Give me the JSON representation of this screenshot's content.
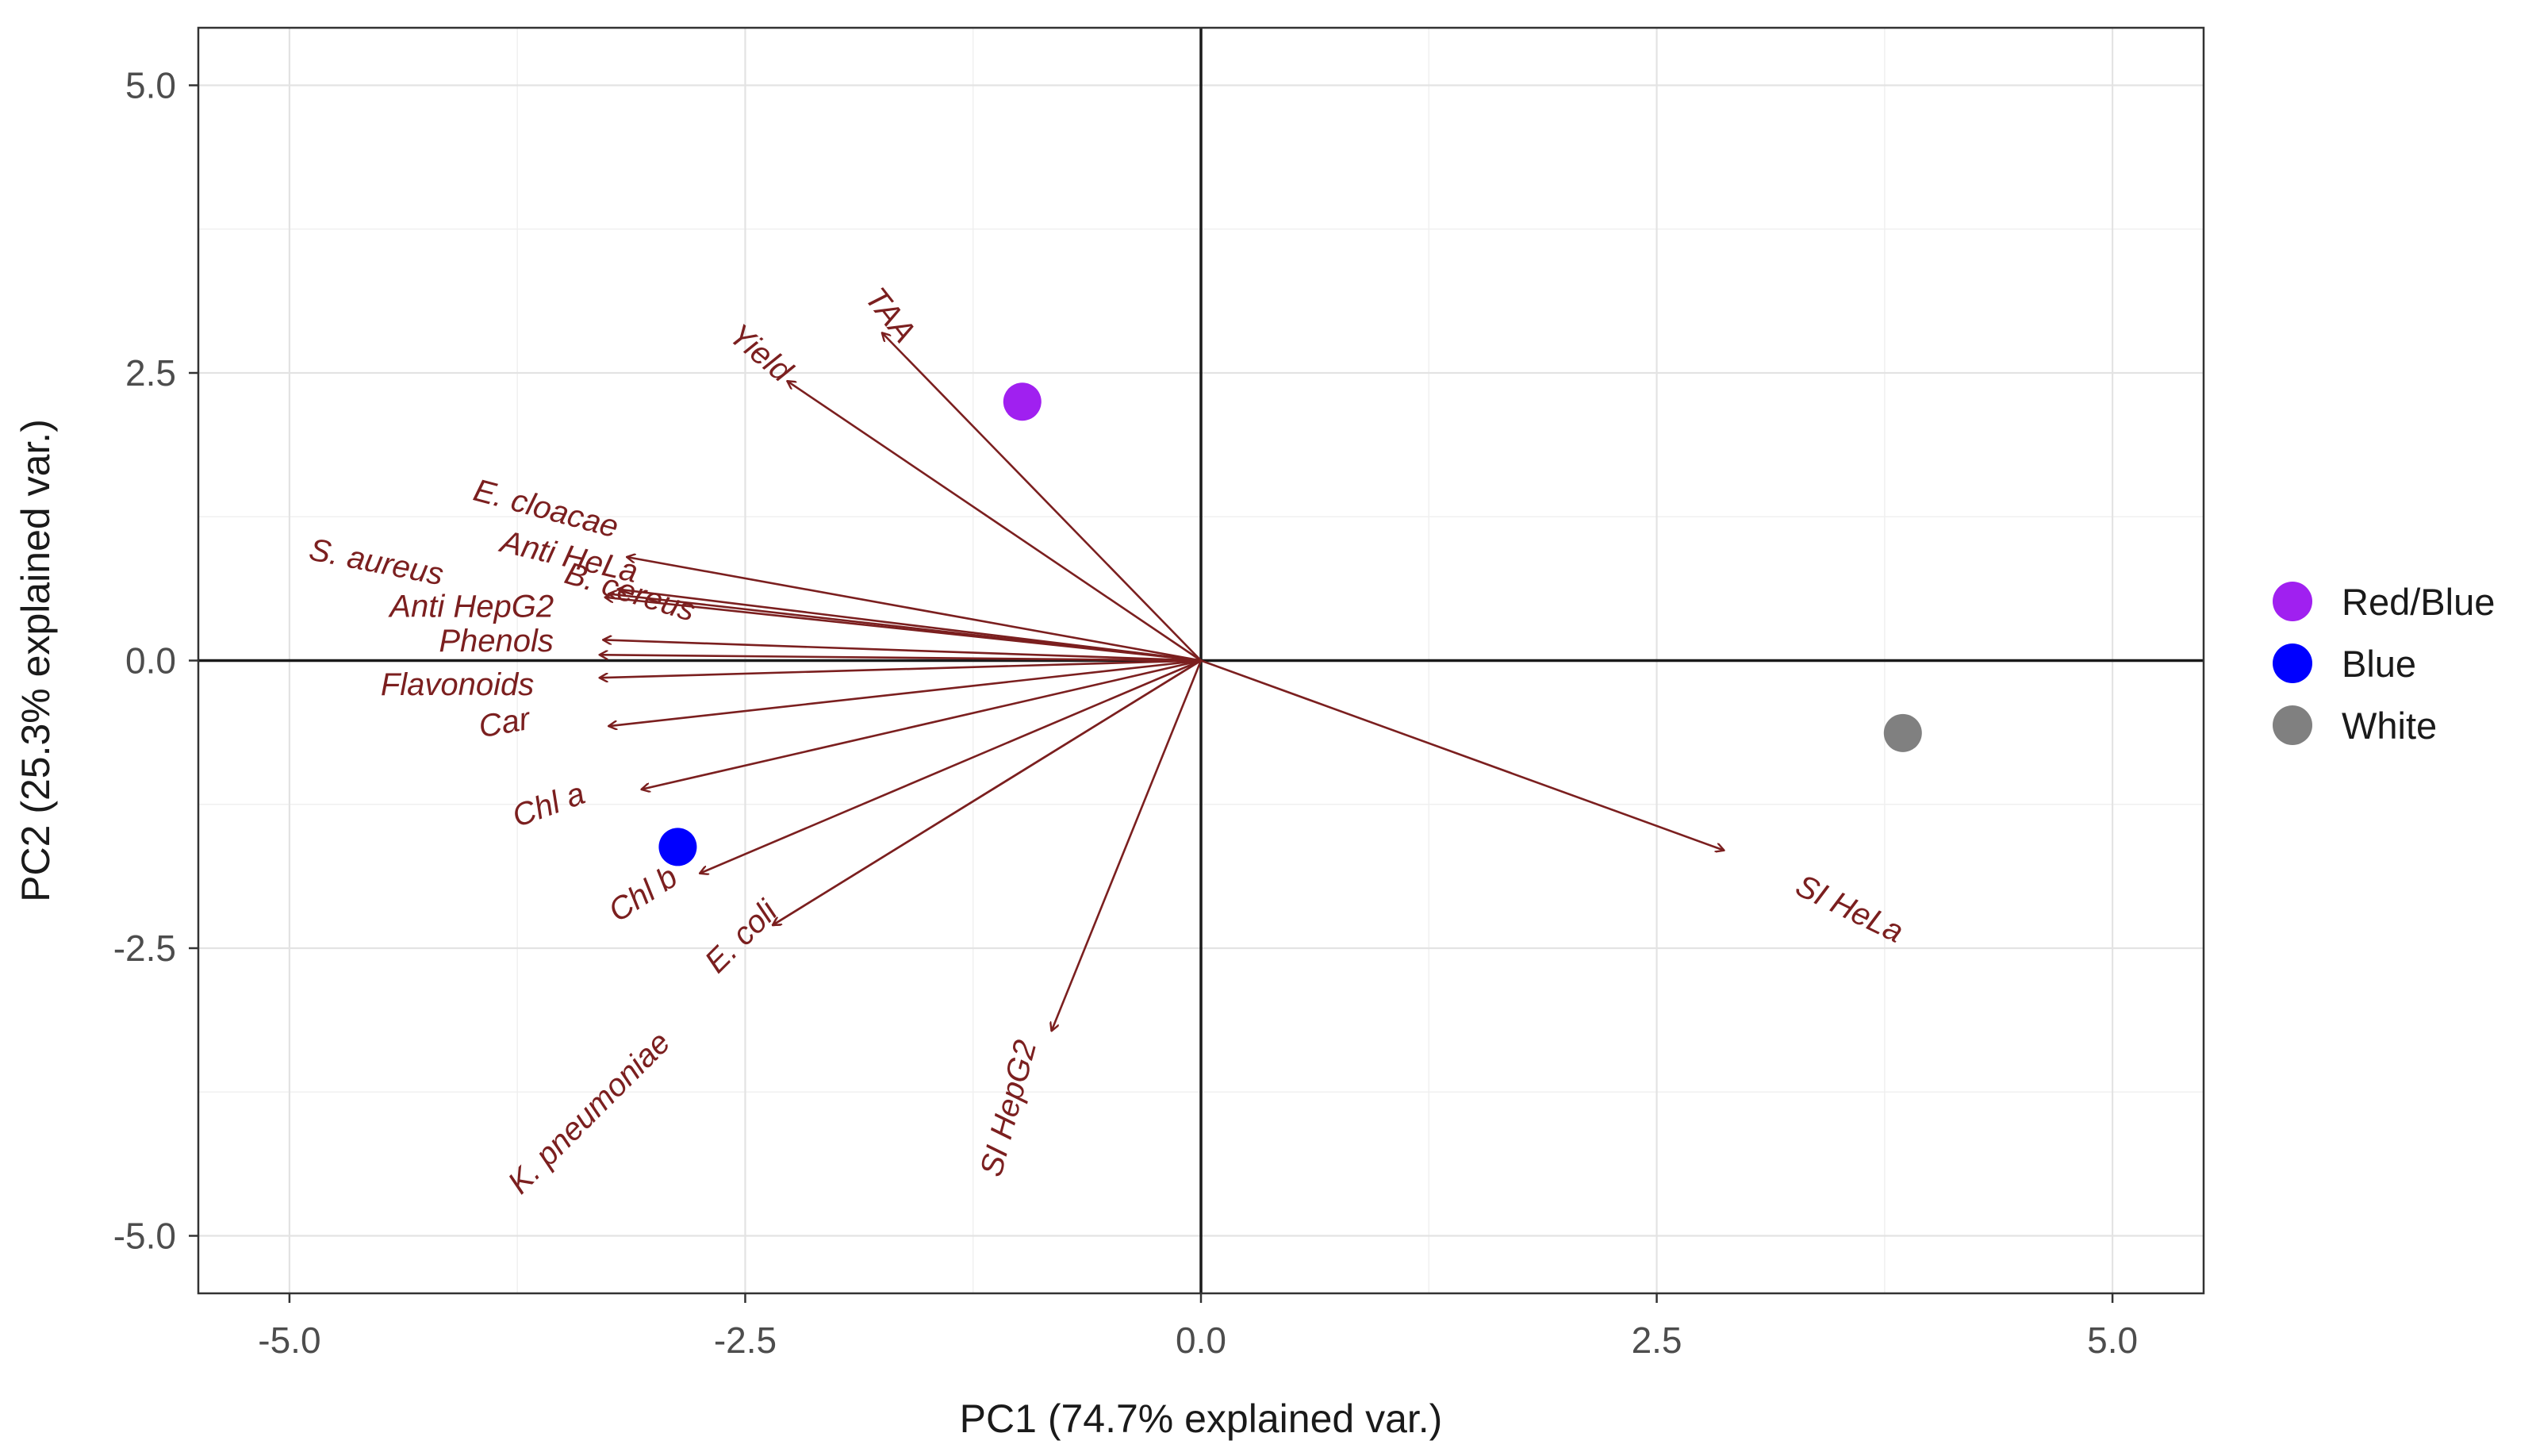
{
  "chart_data": {
    "type": "scatter",
    "subtype": "pca-biplot",
    "xlabel": "PC1 (74.7% explained var.)",
    "ylabel": "PC2 (25.3% explained var.)",
    "xlim": [
      -5.5,
      5.5
    ],
    "ylim": [
      -5.5,
      5.5
    ],
    "xticks": [
      -5.0,
      -2.5,
      0.0,
      2.5,
      5.0
    ],
    "yticks": [
      -5.0,
      -2.5,
      0.0,
      2.5,
      5.0
    ],
    "xtick_labels": [
      "-5.0",
      "-2.5",
      "0.0",
      "2.5",
      "5.0"
    ],
    "ytick_labels": [
      "-5.0",
      "-2.5",
      "0.0",
      "2.5",
      "5.0"
    ],
    "grid": true,
    "legend_position": "right",
    "arrow_color": "#7b1f1f",
    "points": [
      {
        "name": "Red/Blue",
        "x": -0.98,
        "y": 2.25,
        "color": "#a020f0"
      },
      {
        "name": "Blue",
        "x": -2.87,
        "y": -1.62,
        "color": "#0000ff"
      },
      {
        "name": "White",
        "x": 3.85,
        "y": -0.63,
        "color": "#808080"
      }
    ],
    "loadings": [
      {
        "name": "TAA",
        "x": -1.75,
        "y": 2.85,
        "lx": -1.85,
        "ly": 3.15,
        "angle": 52
      },
      {
        "name": "Yield",
        "x": -2.27,
        "y": 2.43,
        "lx": -2.6,
        "ly": 2.8,
        "angle": 40
      },
      {
        "name": "E. cloacae",
        "x": -3.15,
        "y": 0.9,
        "lx": -4.0,
        "ly": 1.4,
        "angle": 15
      },
      {
        "name": "Anti HeLa",
        "x": -3.2,
        "y": 0.62,
        "lx": -3.85,
        "ly": 0.95,
        "angle": 13
      },
      {
        "name": "B. cereus",
        "x": -3.25,
        "y": 0.58,
        "lx": -3.5,
        "ly": 0.68,
        "angle": 17
      },
      {
        "name": "S. aureus",
        "x": -3.27,
        "y": 0.55,
        "lx": -4.9,
        "ly": 0.88,
        "angle": 11
      },
      {
        "name": "Anti HepG2",
        "x": -3.28,
        "y": 0.18,
        "lx": -4.45,
        "ly": 0.38,
        "angle": 0
      },
      {
        "name": "Phenols",
        "x": -3.3,
        "y": 0.05,
        "lx": -4.18,
        "ly": 0.08,
        "angle": 0
      },
      {
        "name": "Flavonoids",
        "x": -3.3,
        "y": -0.15,
        "lx": -4.5,
        "ly": -0.3,
        "angle": 0
      },
      {
        "name": "Car",
        "x": -3.25,
        "y": -0.57,
        "lx": -3.95,
        "ly": -0.67,
        "angle": -10
      },
      {
        "name": "Chl a",
        "x": -3.07,
        "y": -1.12,
        "lx": -3.75,
        "ly": -1.45,
        "angle": -20
      },
      {
        "name": "Chl b",
        "x": -2.75,
        "y": -1.85,
        "lx": -3.2,
        "ly": -2.28,
        "angle": -33
      },
      {
        "name": "E. coli",
        "x": -2.35,
        "y": -2.3,
        "lx": -2.65,
        "ly": -2.73,
        "angle": -45
      },
      {
        "name": "K. pneumoniae",
        "x": -2.35,
        "y": -2.3,
        "lx": -3.73,
        "ly": -4.65,
        "angle": -45
      },
      {
        "name": "SI HepG2",
        "x": -0.82,
        "y": -3.22,
        "lx": -1.1,
        "ly": -4.5,
        "angle": -75
      },
      {
        "name": "SI HeLa",
        "x": 2.87,
        "y": -1.65,
        "lx": 3.25,
        "ly": -2.02,
        "angle": 26
      }
    ]
  }
}
